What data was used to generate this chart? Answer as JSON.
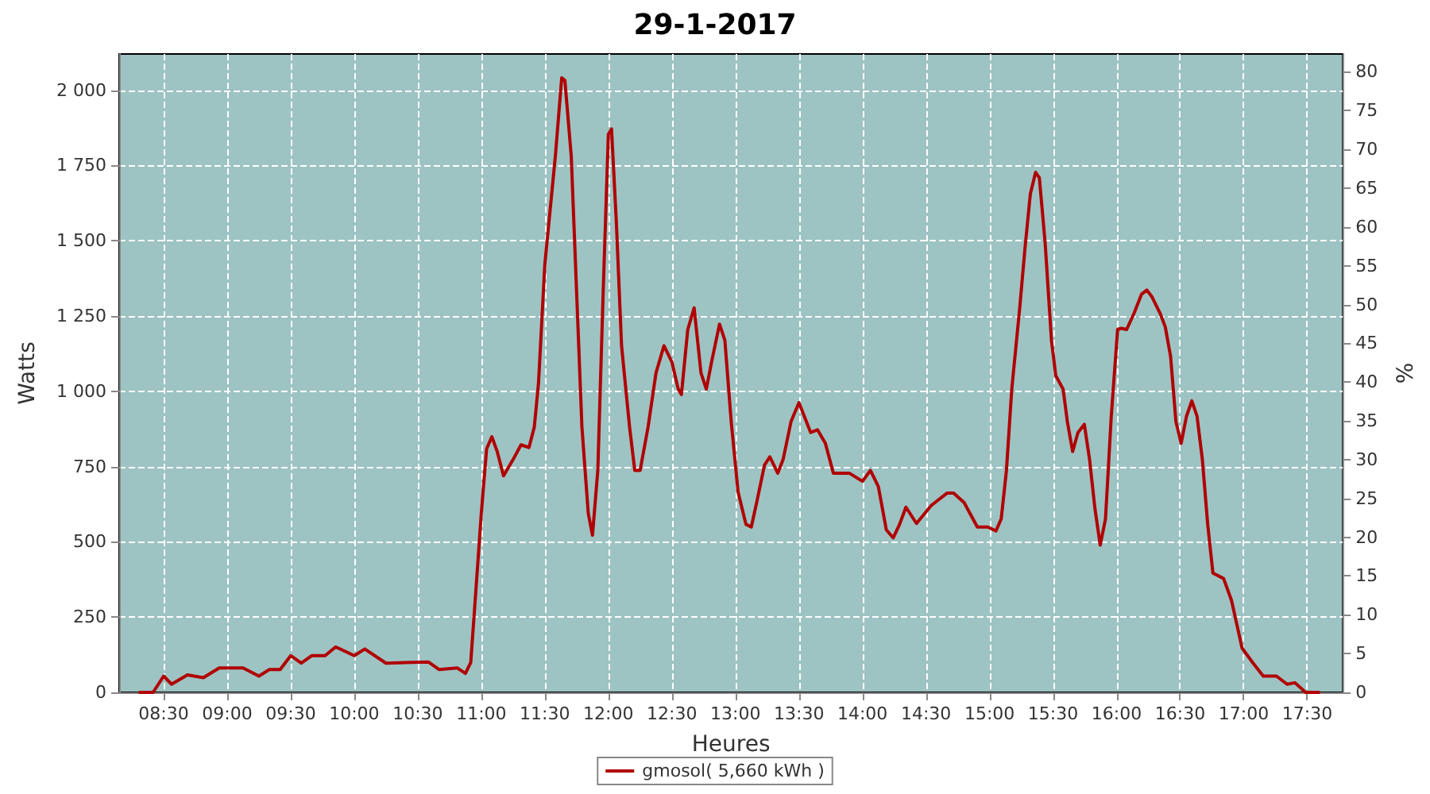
{
  "chart_data": {
    "type": "line",
    "title": "29-1-2017",
    "xlabel": "Heures",
    "ylabel": "Watts",
    "y2label": "%",
    "x": [
      8.3125,
      8.417,
      8.5,
      8.5625,
      8.6875,
      8.8125,
      8.9375,
      9.125,
      9.25,
      9.333,
      9.417,
      9.5,
      9.583,
      9.667,
      9.771,
      9.854,
      10.0,
      10.083,
      10.25,
      10.583,
      10.667,
      10.8125,
      10.875,
      10.917,
      10.958,
      11.0,
      11.042,
      11.083,
      11.125,
      11.175,
      11.25,
      11.3125,
      11.375,
      11.417,
      11.45,
      11.5,
      11.583,
      11.633,
      11.658,
      11.708,
      11.75,
      11.792,
      11.842,
      11.875,
      11.917,
      11.958,
      12.0,
      12.025,
      12.0625,
      12.104,
      12.167,
      12.208,
      12.25,
      12.3125,
      12.375,
      12.4375,
      12.5,
      12.55,
      12.575,
      12.625,
      12.675,
      12.729,
      12.771,
      12.8125,
      12.875,
      12.917,
      12.967,
      13.021,
      13.083,
      13.125,
      13.167,
      13.229,
      13.271,
      13.333,
      13.375,
      13.4375,
      13.5,
      13.542,
      13.592,
      13.646,
      13.708,
      13.771,
      13.896,
      14.0,
      14.0625,
      14.125,
      14.1875,
      14.242,
      14.292,
      14.342,
      14.425,
      14.542,
      14.667,
      14.717,
      14.8,
      14.904,
      14.9875,
      15.05,
      15.092,
      15.133,
      15.175,
      15.2375,
      15.279,
      15.321,
      15.3625,
      15.392,
      15.4375,
      15.4875,
      15.521,
      15.579,
      15.6125,
      15.654,
      15.696,
      15.746,
      15.7875,
      15.829,
      15.871,
      15.9125,
      15.958,
      16.008,
      16.0375,
      16.079,
      16.1375,
      16.196,
      16.2375,
      16.279,
      16.342,
      16.383,
      16.425,
      16.467,
      16.508,
      16.55,
      16.592,
      16.633,
      16.675,
      16.717,
      16.758,
      16.842,
      16.904,
      16.9875,
      17.071,
      17.154,
      17.258,
      17.342,
      17.404,
      17.4875,
      17.592
    ],
    "series": [
      {
        "name": "gmosol( 5,660 kWh )",
        "color": "#b00000",
        "values": [
          0,
          0,
          54,
          27,
          58,
          49,
          81,
          81,
          54,
          76,
          76,
          122,
          97,
          122,
          122,
          151,
          122,
          144,
          97,
          101,
          76,
          81,
          63,
          99,
          342,
          594,
          809,
          849,
          800,
          719,
          773,
          822,
          813,
          881,
          1025,
          1421,
          1781,
          2041,
          2032,
          1781,
          1331,
          881,
          594,
          522,
          737,
          1313,
          1853,
          1871,
          1565,
          1151,
          881,
          737,
          737,
          881,
          1061,
          1151,
          1097,
          1007,
          989,
          1205,
          1277,
          1061,
          1007,
          1097,
          1223,
          1169,
          899,
          665,
          558,
          549,
          630,
          755,
          782,
          728,
          773,
          899,
          962,
          917,
          863,
          872,
          827,
          728,
          728,
          701,
          737,
          683,
          540,
          513,
          558,
          615,
          561,
          621,
          662,
          662,
          630,
          549,
          549,
          536,
          576,
          737,
          1007,
          1277,
          1475,
          1655,
          1727,
          1709,
          1493,
          1169,
          1052,
          1007,
          899,
          800,
          863,
          890,
          773,
          612,
          489,
          576,
          917,
          1205,
          1209,
          1205,
          1259,
          1322,
          1336,
          1313,
          1259,
          1214,
          1115,
          899,
          827,
          917,
          968,
          917,
          773,
          558,
          396,
          378,
          306,
          147,
          99,
          54,
          54,
          27,
          32,
          0,
          0
        ]
      }
    ],
    "xlim": [
      8.15,
      17.78
    ],
    "xticks": [
      {
        "value": 8.5,
        "label": "08:30"
      },
      {
        "value": 9,
        "label": "09:00"
      },
      {
        "value": 9.5,
        "label": "09:30"
      },
      {
        "value": 10,
        "label": "10:00"
      },
      {
        "value": 10.5,
        "label": "10:30"
      },
      {
        "value": 11,
        "label": "11:00"
      },
      {
        "value": 11.5,
        "label": "11:30"
      },
      {
        "value": 12,
        "label": "12:00"
      },
      {
        "value": 12.5,
        "label": "12:30"
      },
      {
        "value": 13,
        "label": "13:00"
      },
      {
        "value": 13.5,
        "label": "13:30"
      },
      {
        "value": 14,
        "label": "14:00"
      },
      {
        "value": 14.5,
        "label": "14:30"
      },
      {
        "value": 15,
        "label": "15:00"
      },
      {
        "value": 15.5,
        "label": "15:30"
      },
      {
        "value": 16,
        "label": "16:00"
      },
      {
        "value": 16.5,
        "label": "16:30"
      },
      {
        "value": 17,
        "label": "17:00"
      },
      {
        "value": 17.5,
        "label": "17:30"
      }
    ],
    "ylim": [
      0,
      2120
    ],
    "yticks": [
      0,
      250,
      500,
      750,
      {
        "value": 1000,
        "label": "1 000"
      },
      {
        "value": 1250,
        "label": "1 250"
      },
      {
        "value": 1500,
        "label": "1 500"
      },
      {
        "value": 1750,
        "label": "1 750"
      },
      {
        "value": 2000,
        "label": "2 000"
      }
    ],
    "y2lim": [
      0,
      82.3
    ],
    "y2ticks": [
      0,
      5,
      10,
      15,
      20,
      25,
      30,
      35,
      40,
      45,
      50,
      55,
      60,
      65,
      70,
      75,
      80
    ],
    "grid": true,
    "legend": "bottom",
    "marker": "none",
    "line_style": "solid"
  }
}
